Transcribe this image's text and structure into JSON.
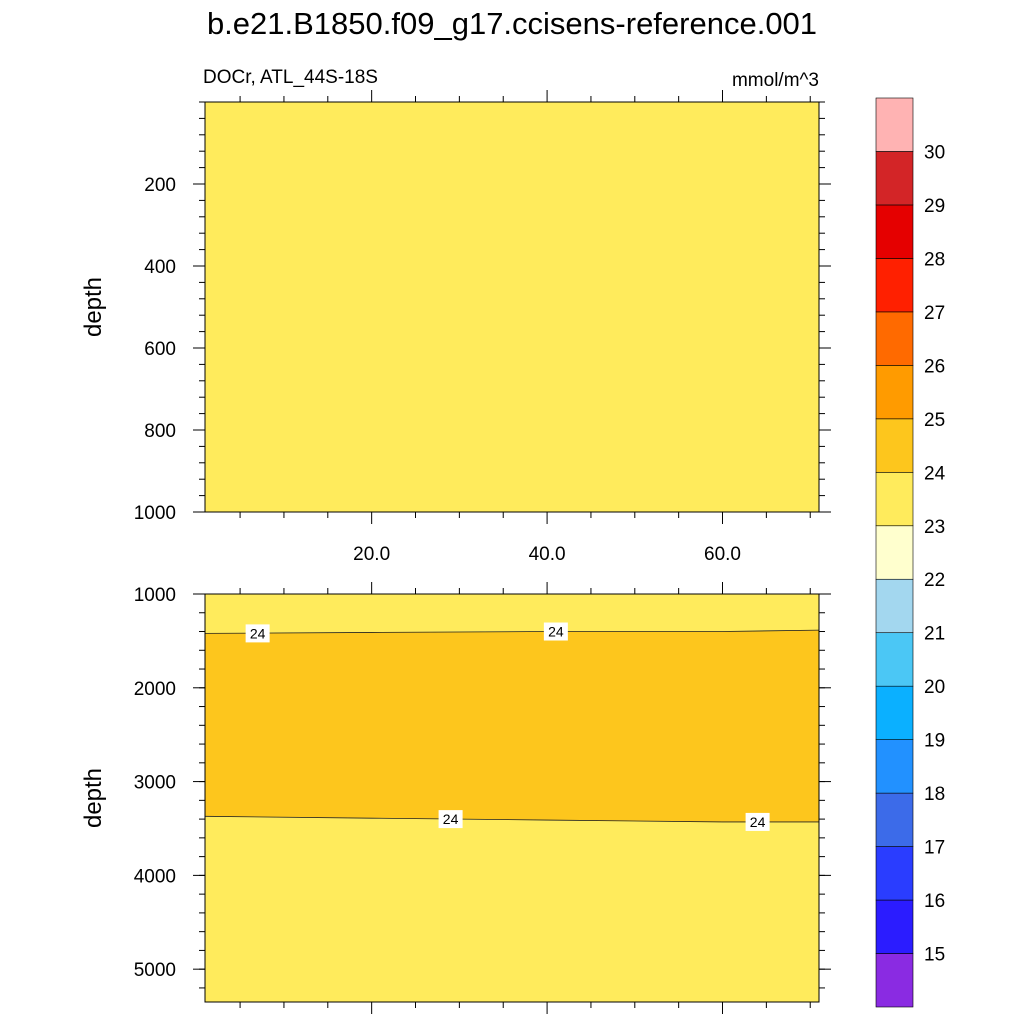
{
  "chart_data": {
    "type": "contour",
    "title": "b.e21.B1850.f09_g17.ccisens-reference.001",
    "subtitle_left": "DOCr, ATL_44S-18S",
    "subtitle_right": "mmol/m^3",
    "x_tick_labels": [
      "20.0",
      "40.0",
      "60.0"
    ],
    "x_ticks": [
      20,
      40,
      60
    ],
    "xlim": [
      1,
      71
    ],
    "panels": [
      {
        "ylabel": "depth",
        "ylim": [
          0,
          1000
        ],
        "y_ticks": [
          200,
          400,
          600,
          800,
          1000
        ],
        "y_tick_labels": [
          "200",
          "400",
          "600",
          "800",
          "1000"
        ],
        "fill_color": "#ffeb5c",
        "regions": [],
        "contour_lines": []
      },
      {
        "ylabel": "depth",
        "ylim": [
          1000,
          5350
        ],
        "y_ticks": [
          1000,
          2000,
          3000,
          4000,
          5000
        ],
        "y_tick_labels": [
          "1000",
          "2000",
          "3000",
          "4000",
          "5000"
        ],
        "fill_color": "#ffeb5c",
        "regions": [
          {
            "color": "#fdc61d",
            "level_range": [
              24,
              25
            ],
            "top_boundary": {
              "x": [
                1,
                20,
                40,
                60,
                71
              ],
              "y": [
                1420,
                1410,
                1400,
                1400,
                1385
              ]
            },
            "bottom_boundary": {
              "x": [
                1,
                20,
                40,
                60,
                71
              ],
              "y": [
                3370,
                3390,
                3410,
                3430,
                3430
              ]
            }
          }
        ],
        "contour_lines": [
          {
            "level": 24,
            "x": [
              1,
              20,
              40,
              60,
              71
            ],
            "y": [
              1420,
              1410,
              1400,
              1400,
              1385
            ],
            "labels": [
              {
                "text": "24",
                "x": 7,
                "y": 1420
              },
              {
                "text": "24",
                "x": 41,
                "y": 1400
              }
            ]
          },
          {
            "level": 24,
            "x": [
              1,
              20,
              40,
              60,
              71
            ],
            "y": [
              3370,
              3390,
              3410,
              3430,
              3430
            ],
            "labels": [
              {
                "text": "24",
                "x": 29,
                "y": 3400
              },
              {
                "text": "24",
                "x": 64,
                "y": 3430
              }
            ]
          }
        ]
      }
    ],
    "colorbar": {
      "labels": [
        "15",
        "16",
        "17",
        "18",
        "19",
        "20",
        "21",
        "22",
        "23",
        "24",
        "25",
        "26",
        "27",
        "28",
        "29",
        "30"
      ],
      "colors_bottom_to_top": [
        "#8a2be2",
        "#2b1cff",
        "#2a3dff",
        "#3c6be9",
        "#2291ff",
        "#0bb0ff",
        "#4bc7f5",
        "#a3d7ef",
        "#ffffce",
        "#ffeb5c",
        "#fdc61d",
        "#ff9b00",
        "#ff6a00",
        "#ff2000",
        "#e50000",
        "#d32527",
        "#ffb3b3"
      ]
    }
  }
}
